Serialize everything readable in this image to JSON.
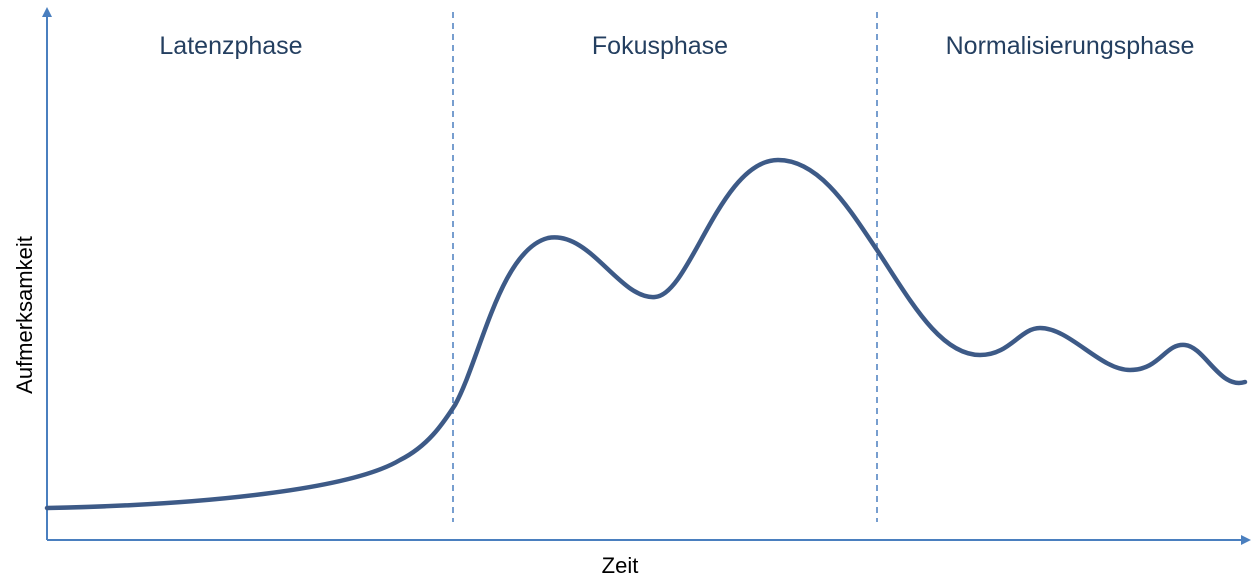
{
  "phases": [
    "Latenzphase",
    "Fokusphase",
    "Normalisierungsphase"
  ],
  "x_axis_label": "Zeit",
  "y_axis_label": "Aufmerksamkeit"
}
